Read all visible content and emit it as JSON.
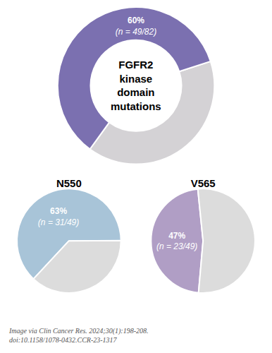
{
  "chart_data": [
    {
      "type": "donut",
      "values": [
        40,
        60
      ],
      "colors": [
        "#d4d2d5",
        "#7b70b0"
      ],
      "data_labels": true,
      "value_labels": [
        null,
        "60%"
      ],
      "annotations": [
        "(n = 49/82)",
        "FGFR2\nkinase\ndomain\nmutations"
      ]
    },
    {
      "type": "pie",
      "title": "N550",
      "values": [
        63,
        37
      ],
      "colors": [
        "#a8c4d8",
        "#dcdcdc"
      ],
      "data_labels": true,
      "value_labels": [
        "63%",
        null
      ],
      "annotations": [
        "(n = 31/49)"
      ]
    },
    {
      "type": "pie",
      "title": "V565",
      "values": [
        47,
        53
      ],
      "colors": [
        "#b09ec5",
        "#dcdcdc"
      ],
      "data_labels": true,
      "value_labels": [
        "47%",
        null
      ],
      "annotations": [
        "(n = 23/49)"
      ]
    }
  ],
  "annotations": [
    "Image via Clin Cancer Res. 2024;30(1):198-208.\ndoi:10.1158/1078-0432.CCR-23-1317"
  ]
}
